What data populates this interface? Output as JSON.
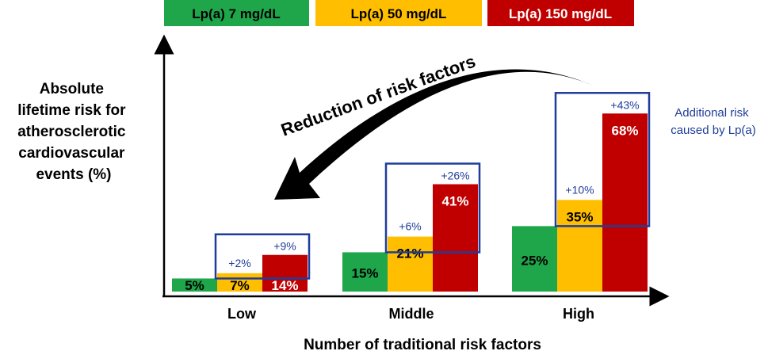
{
  "chart_data": {
    "type": "bar",
    "title": "",
    "ylabel_lines": [
      "Absolute",
      "lifetime risk for",
      "atherosclerotic",
      "cardiovascular",
      "events  (%)"
    ],
    "xlabel": "Number of traditional risk factors",
    "categories": [
      "Low",
      "Middle",
      "High"
    ],
    "series": [
      {
        "name": "Lp(a) 7 mg/dL",
        "color": "#1fa64a",
        "values": [
          5,
          15,
          25
        ],
        "labels": [
          "5%",
          "15%",
          "25%"
        ]
      },
      {
        "name": "Lp(a) 50 mg/dL",
        "color": "#ffbf00",
        "values": [
          7,
          21,
          35
        ],
        "labels": [
          "7%",
          "21%",
          "35%"
        ]
      },
      {
        "name": "Lp(a) 150 mg/dL",
        "color": "#c00000",
        "values": [
          14,
          41,
          68
        ],
        "labels": [
          "14%",
          "41%",
          "68%"
        ]
      }
    ],
    "additional_risk_labels": [
      {
        "category": "Low",
        "mid": "+2%",
        "high": "+9%"
      },
      {
        "category": "Middle",
        "mid": "+6%",
        "high": "+26%"
      },
      {
        "category": "High",
        "mid": "+10%",
        "high": "+43%"
      }
    ],
    "annotation_arrow": "Reduction of risk factors",
    "box_legend_lines": [
      "Additional risk",
      "caused by Lp(a)"
    ],
    "box_color": "#1f3d99",
    "ylim": [
      0,
      100
    ],
    "legend_position": "top"
  }
}
